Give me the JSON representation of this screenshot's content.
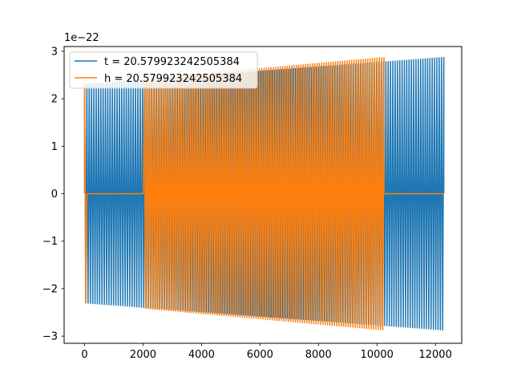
{
  "chart_data": {
    "type": "line",
    "title": "",
    "xlabel": "",
    "ylabel": "",
    "y_offset_label": "1e−22",
    "xlim": [
      -700,
      12900
    ],
    "ylim": [
      -3.15,
      3.1
    ],
    "x_ticks": [
      0,
      2000,
      4000,
      6000,
      8000,
      10000,
      12000
    ],
    "x_tick_labels": [
      "0",
      "2000",
      "4000",
      "6000",
      "8000",
      "10000",
      "12000"
    ],
    "y_ticks": [
      3,
      2,
      1,
      0,
      -1,
      -2,
      -3
    ],
    "y_tick_labels": [
      "3",
      "2",
      "1",
      "0",
      "−1",
      "−2",
      "−3"
    ],
    "grid": false,
    "legend_position": "top-left",
    "series": [
      {
        "name": "t = 20.579923242505384",
        "color": "#1f77b4",
        "x_start": 0,
        "x_end": 12288,
        "cycles": 155,
        "amp_start": 2.3,
        "amp_end": 2.87,
        "inner_gaps": []
      },
      {
        "name": "h = 20.579923242505384",
        "color": "#ff7f0e",
        "x_start": 0,
        "x_end": 10240,
        "cycles": 130,
        "amp_start": 2.3,
        "amp_end": 2.87,
        "inner_gaps": [
          [
            40,
            2030
          ]
        ],
        "flat_after": 12288
      }
    ]
  }
}
